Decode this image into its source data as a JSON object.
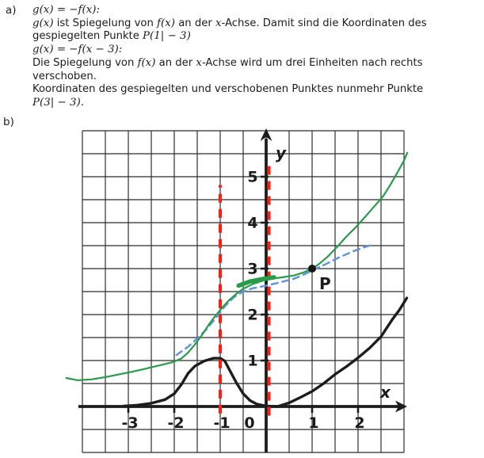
{
  "solution_text": {
    "item_a_label": "a)",
    "item_b_label": "b)",
    "lines": [
      {
        "segments": [
          {
            "t": "g(x) = −f(x):",
            "math": true
          }
        ]
      },
      {
        "segments": [
          {
            "t": "g(x)",
            "math": true
          },
          {
            "t": " ist Spiegelung von ",
            "math": false
          },
          {
            "t": "f(x)",
            "math": true
          },
          {
            "t": " an der ",
            "math": false
          },
          {
            "t": "x",
            "math": true
          },
          {
            "t": "-Achse. Damit sind die Koordinaten des",
            "math": false
          }
        ]
      },
      {
        "segments": [
          {
            "t": "gespiegelten Punkte ",
            "math": false
          },
          {
            "t": "P(1| − 3)",
            "math": true
          }
        ]
      },
      {
        "segments": [
          {
            "t": "g(x) = −f(x − 3):",
            "math": true
          }
        ]
      },
      {
        "segments": [
          {
            "t": "Die Spiegelung von ",
            "math": false
          },
          {
            "t": "f(x)",
            "math": true
          },
          {
            "t": " an der ",
            "math": false
          },
          {
            "t": "x",
            "math": true
          },
          {
            "t": "-Achse wird um drei Einheiten nach rechts",
            "math": false
          }
        ]
      },
      {
        "segments": [
          {
            "t": "verschoben.",
            "math": false
          }
        ]
      },
      {
        "segments": [
          {
            "t": "Koordinaten des gespiegelten und verschobenen Punktes nunmehr Punkte",
            "math": false
          }
        ]
      },
      {
        "segments": [
          {
            "t": "P(3| − 3).",
            "math": true
          }
        ]
      }
    ]
  },
  "chart_data": {
    "type": "line",
    "title": "",
    "xlabel": "x",
    "ylabel": "y",
    "x_range": [
      -4,
      3
    ],
    "y_range": [
      -1,
      6
    ],
    "grid_step": 0.5,
    "grid_on": true,
    "x_tick_labels": [
      {
        "v": -3,
        "t": "-3"
      },
      {
        "v": -2,
        "t": "-2"
      },
      {
        "v": -1,
        "t": "-1"
      },
      {
        "v": 0,
        "t": "0"
      },
      {
        "v": 1,
        "t": "1"
      },
      {
        "v": 2,
        "t": "2"
      }
    ],
    "y_tick_labels": [
      {
        "v": 1,
        "t": "1"
      },
      {
        "v": 2,
        "t": "2"
      },
      {
        "v": 3,
        "t": "3"
      },
      {
        "v": 4,
        "t": "4"
      },
      {
        "v": 5,
        "t": "5"
      }
    ],
    "point": {
      "x": 1,
      "y": 3,
      "label": "P"
    },
    "colors": {
      "axis": "#1c1c1c",
      "grid": "#2e2e2e",
      "red": "#ee2419",
      "green": "#279c49",
      "blue": "#6094de",
      "black_curve": "#1d1d1d"
    },
    "series": [
      {
        "name": "f-black-curve",
        "color": "#1d1d1d",
        "style": "solid",
        "width": 3.4,
        "points": [
          [
            -3.1,
            0.01
          ],
          [
            -2.8,
            0.03
          ],
          [
            -2.5,
            0.07
          ],
          [
            -2.2,
            0.15
          ],
          [
            -2.0,
            0.28
          ],
          [
            -1.85,
            0.47
          ],
          [
            -1.7,
            0.72
          ],
          [
            -1.55,
            0.88
          ],
          [
            -1.35,
            0.99
          ],
          [
            -1.15,
            1.05
          ],
          [
            -1.0,
            1.05
          ],
          [
            -0.9,
            0.99
          ],
          [
            -0.8,
            0.8
          ],
          [
            -0.65,
            0.52
          ],
          [
            -0.5,
            0.28
          ],
          [
            -0.35,
            0.13
          ],
          [
            -0.2,
            0.05
          ],
          [
            0.0,
            0.01
          ],
          [
            0.25,
            0.0
          ],
          [
            0.5,
            0.08
          ],
          [
            0.75,
            0.2
          ],
          [
            1.0,
            0.33
          ],
          [
            1.25,
            0.5
          ],
          [
            1.5,
            0.7
          ],
          [
            1.75,
            0.87
          ],
          [
            2.0,
            1.06
          ],
          [
            2.25,
            1.27
          ],
          [
            2.5,
            1.52
          ],
          [
            2.75,
            1.9
          ],
          [
            2.9,
            2.1
          ],
          [
            3.06,
            2.36
          ]
        ]
      },
      {
        "name": "blue-dashed-curve",
        "color": "#6094de",
        "style": "dashed",
        "width": 2.5,
        "points": [
          [
            -1.95,
            1.12
          ],
          [
            -1.7,
            1.3
          ],
          [
            -1.5,
            1.48
          ],
          [
            -1.3,
            1.68
          ],
          [
            -1.1,
            1.92
          ],
          [
            -0.9,
            2.18
          ],
          [
            -0.7,
            2.38
          ],
          [
            -0.5,
            2.5
          ],
          [
            -0.3,
            2.57
          ],
          [
            0.0,
            2.63
          ],
          [
            0.3,
            2.7
          ],
          [
            0.6,
            2.78
          ],
          [
            0.8,
            2.86
          ],
          [
            1.0,
            2.96
          ],
          [
            1.3,
            3.1
          ],
          [
            1.6,
            3.25
          ],
          [
            1.9,
            3.38
          ],
          [
            2.15,
            3.47
          ],
          [
            2.32,
            3.52
          ]
        ]
      },
      {
        "name": "g-green-curve",
        "color": "#279c49",
        "style": "solid",
        "width": 2.2,
        "points": [
          [
            -4.35,
            0.62
          ],
          [
            -4.1,
            0.57
          ],
          [
            -3.8,
            0.59
          ],
          [
            -3.5,
            0.64
          ],
          [
            -3.2,
            0.7
          ],
          [
            -2.9,
            0.76
          ],
          [
            -2.6,
            0.83
          ],
          [
            -2.3,
            0.9
          ],
          [
            -2.05,
            0.96
          ],
          [
            -1.85,
            1.04
          ],
          [
            -1.7,
            1.17
          ],
          [
            -1.55,
            1.35
          ],
          [
            -1.4,
            1.55
          ],
          [
            -1.25,
            1.78
          ],
          [
            -1.1,
            1.98
          ],
          [
            -0.95,
            2.16
          ],
          [
            -0.8,
            2.32
          ],
          [
            -0.65,
            2.45
          ],
          [
            -0.5,
            2.56
          ],
          [
            -0.3,
            2.66
          ],
          [
            -0.1,
            2.73
          ],
          [
            0.1,
            2.78
          ],
          [
            0.35,
            2.81
          ],
          [
            0.6,
            2.85
          ],
          [
            0.8,
            2.91
          ],
          [
            1.0,
            3.0
          ],
          [
            1.15,
            3.1
          ],
          [
            1.35,
            3.27
          ],
          [
            1.55,
            3.48
          ],
          [
            1.75,
            3.7
          ],
          [
            1.95,
            3.9
          ],
          [
            2.15,
            4.12
          ],
          [
            2.35,
            4.35
          ],
          [
            2.55,
            4.58
          ],
          [
            2.7,
            4.82
          ],
          [
            2.85,
            5.08
          ],
          [
            3.0,
            5.35
          ],
          [
            3.07,
            5.52
          ]
        ]
      }
    ],
    "red_guides": [
      {
        "x": -1.0,
        "y_from": -0.15,
        "y_to": 4.82
      },
      {
        "x": 0.06,
        "y_from": -0.2,
        "y_to": 5.35
      }
    ],
    "shift_mark": {
      "color": "#279c49",
      "width": 5.5,
      "points": [
        [
          -0.6,
          2.63
        ],
        [
          -0.35,
          2.72
        ],
        [
          -0.05,
          2.78
        ],
        [
          0.17,
          2.81
        ]
      ]
    }
  }
}
